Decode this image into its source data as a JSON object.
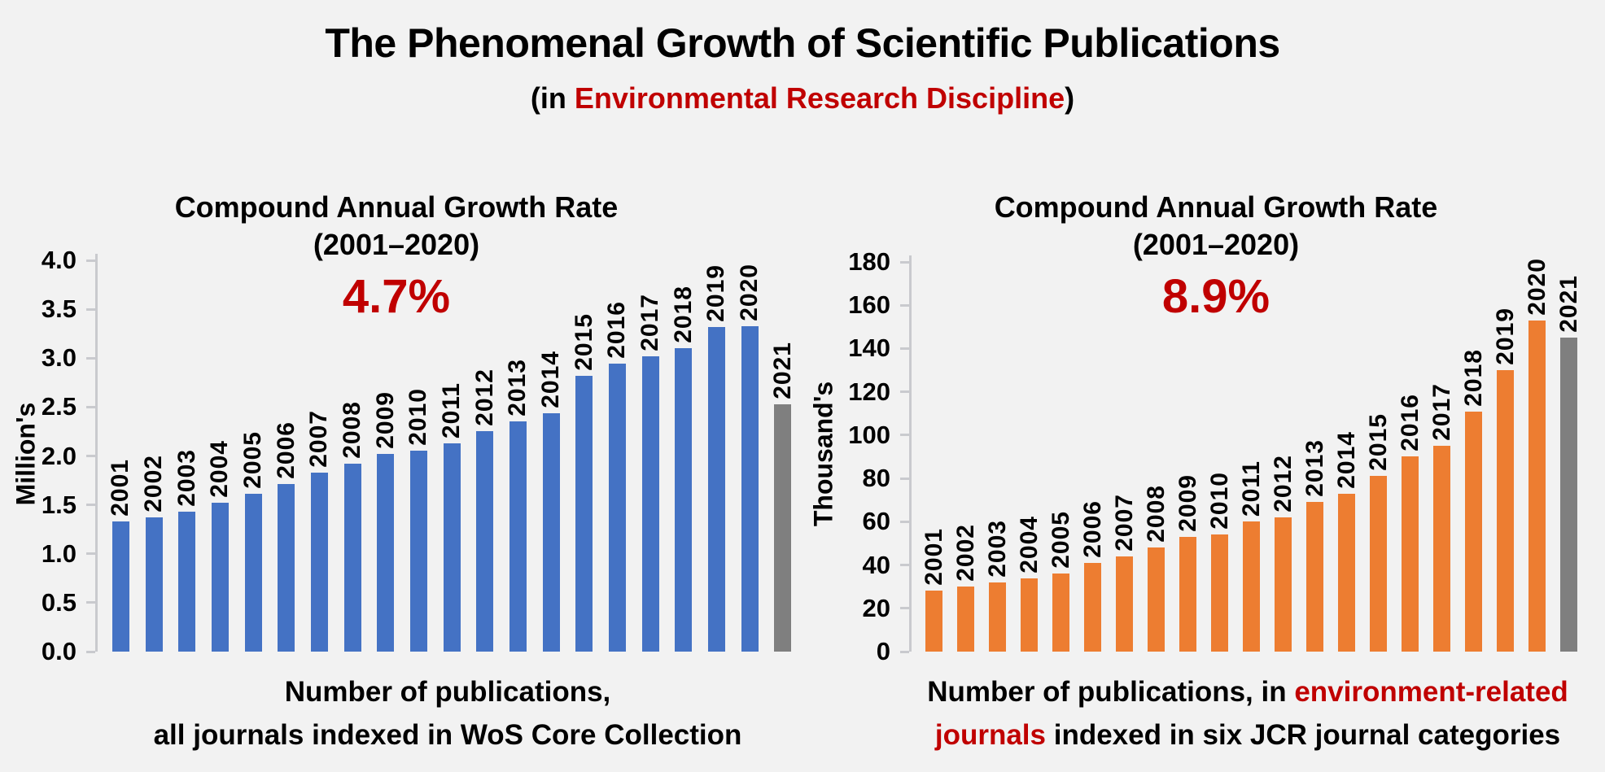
{
  "page": {
    "background": "#F2F2F2",
    "accent_color": "#C00000",
    "title": "The Phenomenal Growth of Scientific Publications",
    "subtitle": {
      "prefix": "(in ",
      "highlight": "Environmental Research Discipline",
      "suffix": ")"
    }
  },
  "chart_data": [
    {
      "type": "bar",
      "growth_title": "Compound Annual Growth Rate",
      "growth_period": "(2001–2020)",
      "growth_rate": "4.7%",
      "ylabel": "Million's",
      "ylim": [
        0,
        4.0
      ],
      "yticks": [
        "0.0",
        "0.5",
        "1.0",
        "1.5",
        "2.0",
        "2.5",
        "3.0",
        "3.5",
        "4.0"
      ],
      "categories": [
        "2001",
        "2002",
        "2003",
        "2004",
        "2005",
        "2006",
        "2007",
        "2008",
        "2009",
        "2010",
        "2011",
        "2012",
        "2013",
        "2014",
        "2015",
        "2016",
        "2017",
        "2018",
        "2019",
        "2020",
        "2021"
      ],
      "values": [
        1.33,
        1.37,
        1.43,
        1.52,
        1.61,
        1.71,
        1.83,
        1.92,
        2.02,
        2.05,
        2.13,
        2.25,
        2.35,
        2.44,
        2.82,
        2.94,
        3.02,
        3.1,
        3.32,
        3.33,
        2.53
      ],
      "bar_color": "#4472C4",
      "final_bar_color": "#7F7F7F",
      "legend_position": "none",
      "grid": false,
      "caption_lines": [
        [
          {
            "text": "Number of publications,",
            "red": false
          }
        ],
        [
          {
            "text": "all journals indexed in WoS Core Collection",
            "red": false
          }
        ]
      ]
    },
    {
      "type": "bar",
      "growth_title": "Compound Annual Growth Rate",
      "growth_period": "(2001–2020)",
      "growth_rate": "8.9%",
      "ylabel": "Thousand's",
      "ylim": [
        0,
        180
      ],
      "yticks": [
        "0",
        "20",
        "40",
        "60",
        "80",
        "100",
        "120",
        "140",
        "160",
        "180"
      ],
      "categories": [
        "2001",
        "2002",
        "2003",
        "2004",
        "2005",
        "2006",
        "2007",
        "2008",
        "2009",
        "2010",
        "2011",
        "2012",
        "2013",
        "2014",
        "2015",
        "2016",
        "2017",
        "2018",
        "2019",
        "2020",
        "2021"
      ],
      "values": [
        28,
        30,
        32,
        34,
        36,
        41,
        44,
        48,
        53,
        54,
        60,
        62,
        69,
        73,
        81,
        90,
        95,
        111,
        130,
        153,
        145
      ],
      "bar_color": "#ED7D31",
      "final_bar_color": "#7F7F7F",
      "legend_position": "none",
      "grid": false,
      "caption_lines": [
        [
          {
            "text": "Number of publications, in ",
            "red": false
          },
          {
            "text": "environment-related",
            "red": true
          }
        ],
        [
          {
            "text": "journals",
            "red": true
          },
          {
            "text": " indexed in six JCR journal categories",
            "red": false
          }
        ]
      ]
    }
  ]
}
